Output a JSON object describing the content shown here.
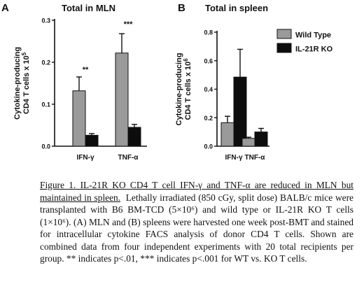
{
  "chart_data": [
    {
      "type": "bar",
      "panel_label": "A",
      "title": "Total in MLN",
      "ylabel": "Cytokine-producing\nCD4 T cells x 10⁵",
      "ylim": [
        0,
        0.3
      ],
      "yticks": [
        "0.0",
        "0.1",
        "0.2",
        "0.3"
      ],
      "categories": [
        "IFN-γ",
        "TNF-α"
      ],
      "series": [
        {
          "name": "Wild Type",
          "values": [
            0.132,
            0.222
          ],
          "errors": [
            0.033,
            0.046
          ]
        },
        {
          "name": "IL-21R KO",
          "values": [
            0.026,
            0.045
          ],
          "errors": [
            0.004,
            0.007
          ]
        }
      ],
      "significance": [
        "**",
        "***"
      ]
    },
    {
      "type": "bar",
      "panel_label": "B",
      "title": "Total in spleen",
      "ylabel": "Cytokine-producing\nCD4 T cells x 10⁶",
      "ylim": [
        0,
        0.8
      ],
      "yticks": [
        "0.0",
        "0.2",
        "0.4",
        "0.6",
        "0.8"
      ],
      "categories": [
        "IFN-γ",
        "TNF-α"
      ],
      "series": [
        {
          "name": "Wild Type",
          "values": [
            0.165,
            0.055
          ],
          "errors": [
            0.045,
            0.008
          ]
        },
        {
          "name": "IL-21R KO",
          "values": [
            0.485,
            0.1
          ],
          "errors": [
            0.195,
            0.025
          ]
        }
      ],
      "legend": "top-right"
    }
  ],
  "colors": {
    "wild_type": "#9a9a9a",
    "ko": "#0d0d0d"
  },
  "caption": {
    "title": "Figure 1. IL-21R KO CD4 T cell IFN-γ and TNF-α are reduced in MLN but maintained in spleen.",
    "body": "Lethally irradiated (850 cGy, split dose) BALB/c mice were transplanted with B6 BM-TCD (5×10⁶) and wild type or IL-21R KO T cells (1×10⁶). (A) MLN and (B) spleens were harvested one week post-BMT and stained for intracellular cytokine FACS analysis of donor CD4 T cells. Shown are combined data from four independent experiments with 20 total recipients per group. ** indicates p<.01, *** indicates p<.001 for WT vs. KO T cells."
  }
}
